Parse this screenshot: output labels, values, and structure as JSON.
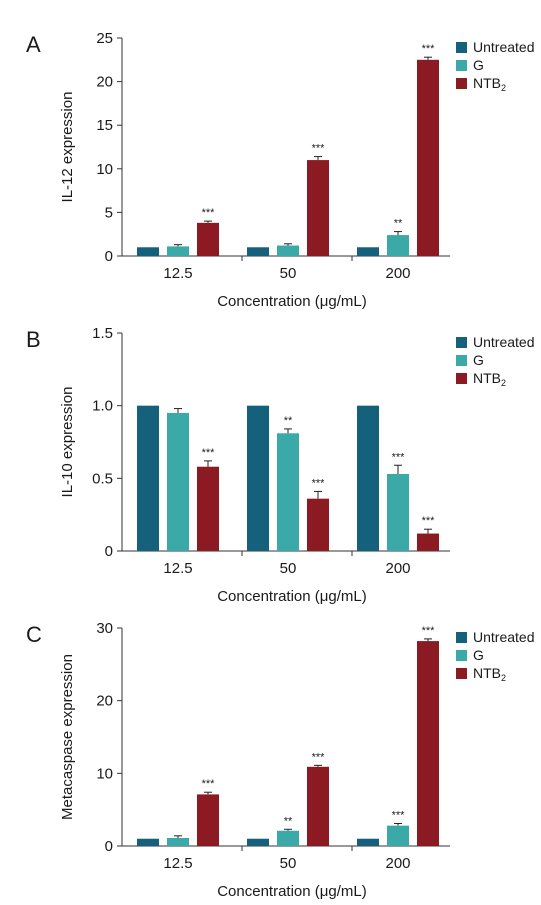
{
  "colors": {
    "Untreated": "#15607a",
    "G": "#3aa9a8",
    "NTB2": "#8b1a22",
    "axis": "#333333"
  },
  "legend": [
    {
      "key": "Untreated",
      "label": "Untreated",
      "sub": ""
    },
    {
      "key": "G",
      "label": "G",
      "sub": ""
    },
    {
      "key": "NTB2",
      "label": "NTB",
      "sub": "2"
    }
  ],
  "chart_data": [
    {
      "type": "bar",
      "panel_label": "A",
      "ylabel": "IL-12 expression",
      "xlabel": "Concentration (μg/mL)",
      "categories": [
        "12.5",
        "50",
        "200"
      ],
      "ylim": [
        0,
        25
      ],
      "yticks": [
        "0",
        "5",
        "10",
        "15",
        "20",
        "25"
      ],
      "yticks_values": [
        0,
        5,
        10,
        15,
        20,
        25
      ],
      "series": [
        {
          "name": "Untreated",
          "values": [
            1.0,
            1.0,
            1.0
          ],
          "errors": [
            0,
            0,
            0
          ],
          "sig": [
            "",
            "",
            ""
          ]
        },
        {
          "name": "G",
          "values": [
            1.1,
            1.2,
            2.4
          ],
          "errors": [
            0.2,
            0.2,
            0.4
          ],
          "sig": [
            "",
            "",
            "**"
          ]
        },
        {
          "name": "NTB2",
          "values": [
            3.8,
            11.0,
            22.5
          ],
          "errors": [
            0.2,
            0.4,
            0.3
          ],
          "sig": [
            "***",
            "***",
            "***"
          ]
        }
      ],
      "legend_position": "top-right"
    },
    {
      "type": "bar",
      "panel_label": "B",
      "ylabel": "IL-10 expression",
      "xlabel": "Concentration (μg/mL)",
      "categories": [
        "12.5",
        "50",
        "200"
      ],
      "ylim": [
        0,
        1.5
      ],
      "yticks": [
        "0",
        "0.5",
        "1.0",
        "1.5"
      ],
      "yticks_values": [
        0,
        0.5,
        1.0,
        1.5
      ],
      "series": [
        {
          "name": "Untreated",
          "values": [
            1.0,
            1.0,
            1.0
          ],
          "errors": [
            0,
            0,
            0
          ],
          "sig": [
            "",
            "",
            ""
          ]
        },
        {
          "name": "G",
          "values": [
            0.95,
            0.81,
            0.53
          ],
          "errors": [
            0.03,
            0.03,
            0.06
          ],
          "sig": [
            "",
            "**",
            "***"
          ]
        },
        {
          "name": "NTB2",
          "values": [
            0.58,
            0.36,
            0.12
          ],
          "errors": [
            0.04,
            0.05,
            0.03
          ],
          "sig": [
            "***",
            "***",
            "***"
          ]
        }
      ],
      "legend_position": "top-right"
    },
    {
      "type": "bar",
      "panel_label": "C",
      "ylabel": "Metacaspase expression",
      "xlabel": "Concentration (μg/mL)",
      "categories": [
        "12.5",
        "50",
        "200"
      ],
      "ylim": [
        0,
        30
      ],
      "yticks": [
        "0",
        "10",
        "20",
        "30"
      ],
      "yticks_values": [
        0,
        10,
        20,
        30
      ],
      "series": [
        {
          "name": "Untreated",
          "values": [
            1.0,
            1.0,
            1.0
          ],
          "errors": [
            0,
            0,
            0
          ],
          "sig": [
            "",
            "",
            ""
          ]
        },
        {
          "name": "G",
          "values": [
            1.1,
            2.1,
            2.8
          ],
          "errors": [
            0.3,
            0.2,
            0.3
          ],
          "sig": [
            "",
            "**",
            "***"
          ]
        },
        {
          "name": "NTB2",
          "values": [
            7.1,
            10.9,
            28.2
          ],
          "errors": [
            0.3,
            0.2,
            0.3
          ],
          "sig": [
            "***",
            "***",
            "***"
          ]
        }
      ],
      "legend_position": "top-right"
    }
  ]
}
